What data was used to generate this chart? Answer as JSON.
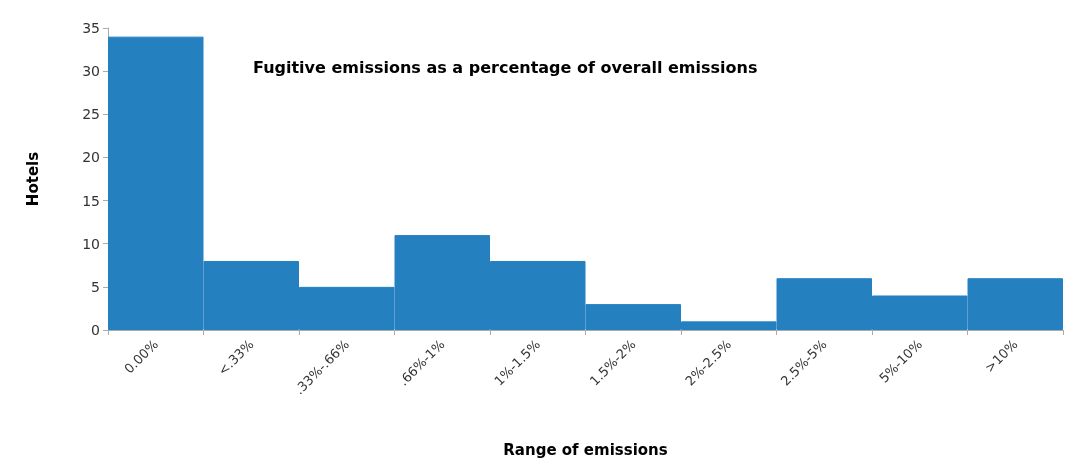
{
  "chart_data": {
    "type": "bar",
    "title": "Fugitive emissions as a percentage of overall emissions",
    "xlabel": "Range of emissions",
    "ylabel": "Hotels",
    "categories": [
      "0.00%",
      "<.33%",
      ".33%-.66%",
      ".66%-1%",
      "1%-1.5%",
      "1.5%-2%",
      "2%-2.5%",
      "2.5%-5%",
      "5%-10%",
      ">10%"
    ],
    "values": [
      34,
      8,
      5,
      11,
      8,
      3,
      1,
      6,
      4,
      6
    ],
    "color": "#2580c0",
    "ylim": [
      0,
      35
    ],
    "yticks": [
      0,
      5,
      10,
      15,
      20,
      25,
      30,
      35
    ],
    "grid": false
  }
}
